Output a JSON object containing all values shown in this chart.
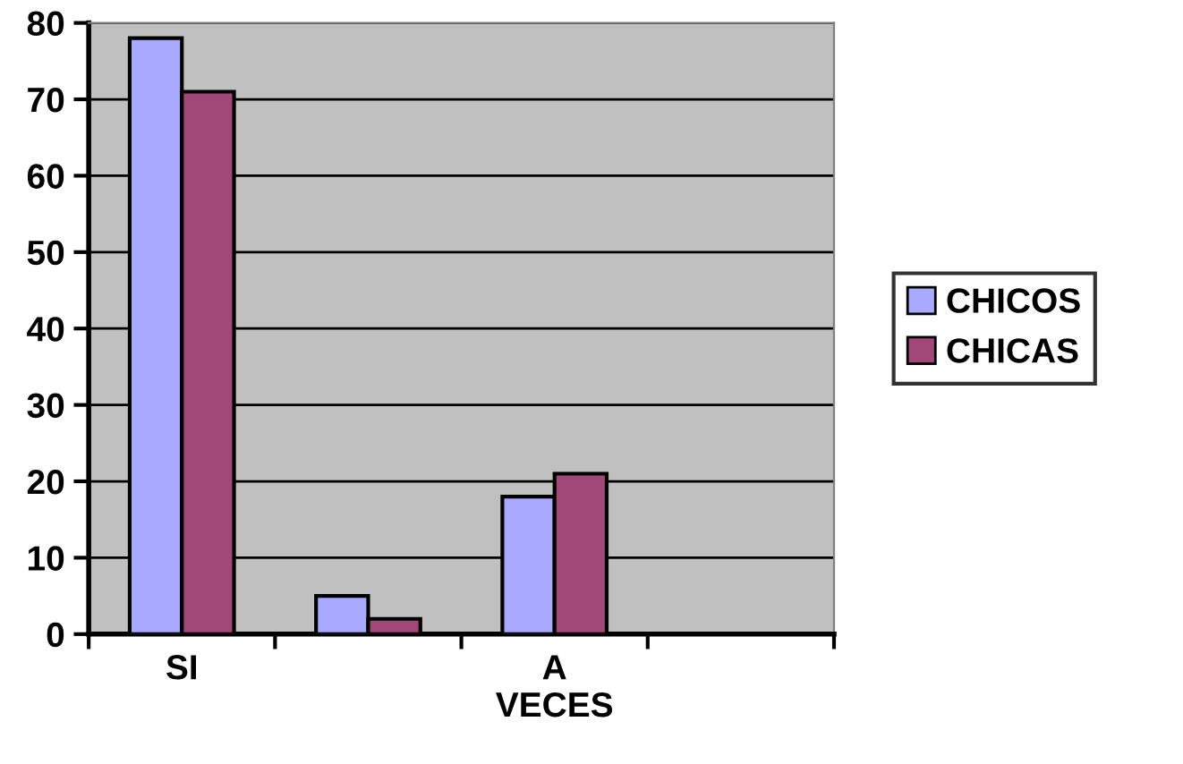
{
  "chart_data": {
    "type": "bar",
    "categories": [
      "SI",
      null,
      "A\nVECES",
      null
    ],
    "series": [
      {
        "name": "CHICOS",
        "color": "#a9a9ff",
        "values": [
          78,
          5,
          18,
          null
        ]
      },
      {
        "name": "CHICAS",
        "color": "#a04878",
        "values": [
          71,
          2,
          21,
          null
        ]
      }
    ],
    "ylim": [
      0,
      80
    ],
    "yticks": [
      0,
      10,
      20,
      30,
      40,
      50,
      60,
      70,
      80
    ],
    "grid": "y",
    "legend": "right"
  }
}
